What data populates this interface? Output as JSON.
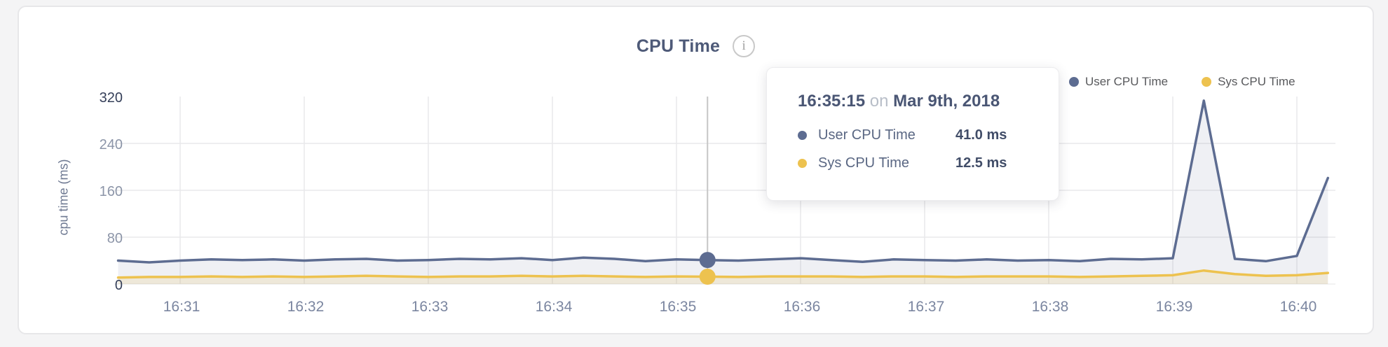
{
  "card": {
    "title": "CPU Time",
    "info_glyph": "i"
  },
  "legend": {
    "items": [
      {
        "label": "User CPU Time",
        "color": "#5d6c91"
      },
      {
        "label": "Sys CPU Time",
        "color": "#edc24f"
      }
    ]
  },
  "tooltip": {
    "time": "16:35:15",
    "connector": "on",
    "date": "Mar 9th, 2018",
    "rows": [
      {
        "label": "User CPU Time",
        "value": "41.0 ms",
        "color": "#5d6c91"
      },
      {
        "label": "Sys CPU Time",
        "value": "12.5 ms",
        "color": "#edc24f"
      }
    ]
  },
  "chart_data": {
    "type": "line",
    "title": "CPU Time",
    "xlabel": "",
    "ylabel": "cpu time (ms)",
    "ylim": [
      0,
      320
    ],
    "y_ticks": [
      0,
      80,
      160,
      240,
      320
    ],
    "x_ticks": [
      "16:31",
      "16:32",
      "16:33",
      "16:34",
      "16:35",
      "16:36",
      "16:37",
      "16:38",
      "16:39",
      "16:40"
    ],
    "x_tick_seconds": [
      60,
      120,
      180,
      240,
      300,
      360,
      420,
      480,
      540,
      600
    ],
    "x_start_seconds": 30,
    "x_step_seconds": 15,
    "grid": true,
    "legend_position": "top-right",
    "units": "ms",
    "series": [
      {
        "name": "User CPU Time",
        "color": "#5d6c91",
        "fill": "rgba(96,111,147,0.10)",
        "values": [
          40,
          37,
          40,
          42,
          41,
          42,
          40,
          42,
          43,
          40,
          41,
          43,
          42,
          44,
          41,
          45,
          43,
          39,
          42,
          41,
          40,
          42,
          44,
          41,
          38,
          42,
          41,
          40,
          42,
          40,
          41,
          39,
          43,
          42,
          44,
          313,
          43,
          39,
          48,
          181
        ]
      },
      {
        "name": "Sys CPU Time",
        "color": "#edc24f",
        "fill": "rgba(237,194,79,0.16)",
        "values": [
          11,
          12,
          12,
          13,
          12,
          13,
          12,
          13,
          14,
          13,
          12,
          13,
          13,
          14,
          13,
          14,
          13,
          12,
          13,
          12.5,
          12,
          13,
          13,
          13,
          12,
          13,
          13,
          12,
          13,
          13,
          13,
          12,
          13,
          14,
          15,
          23,
          17,
          14,
          15,
          19
        ]
      }
    ],
    "hover_index": 19,
    "hover_values": {
      "User CPU Time": 41.0,
      "Sys CPU Time": 12.5
    },
    "crosshair_color": "#c6c6c6"
  }
}
